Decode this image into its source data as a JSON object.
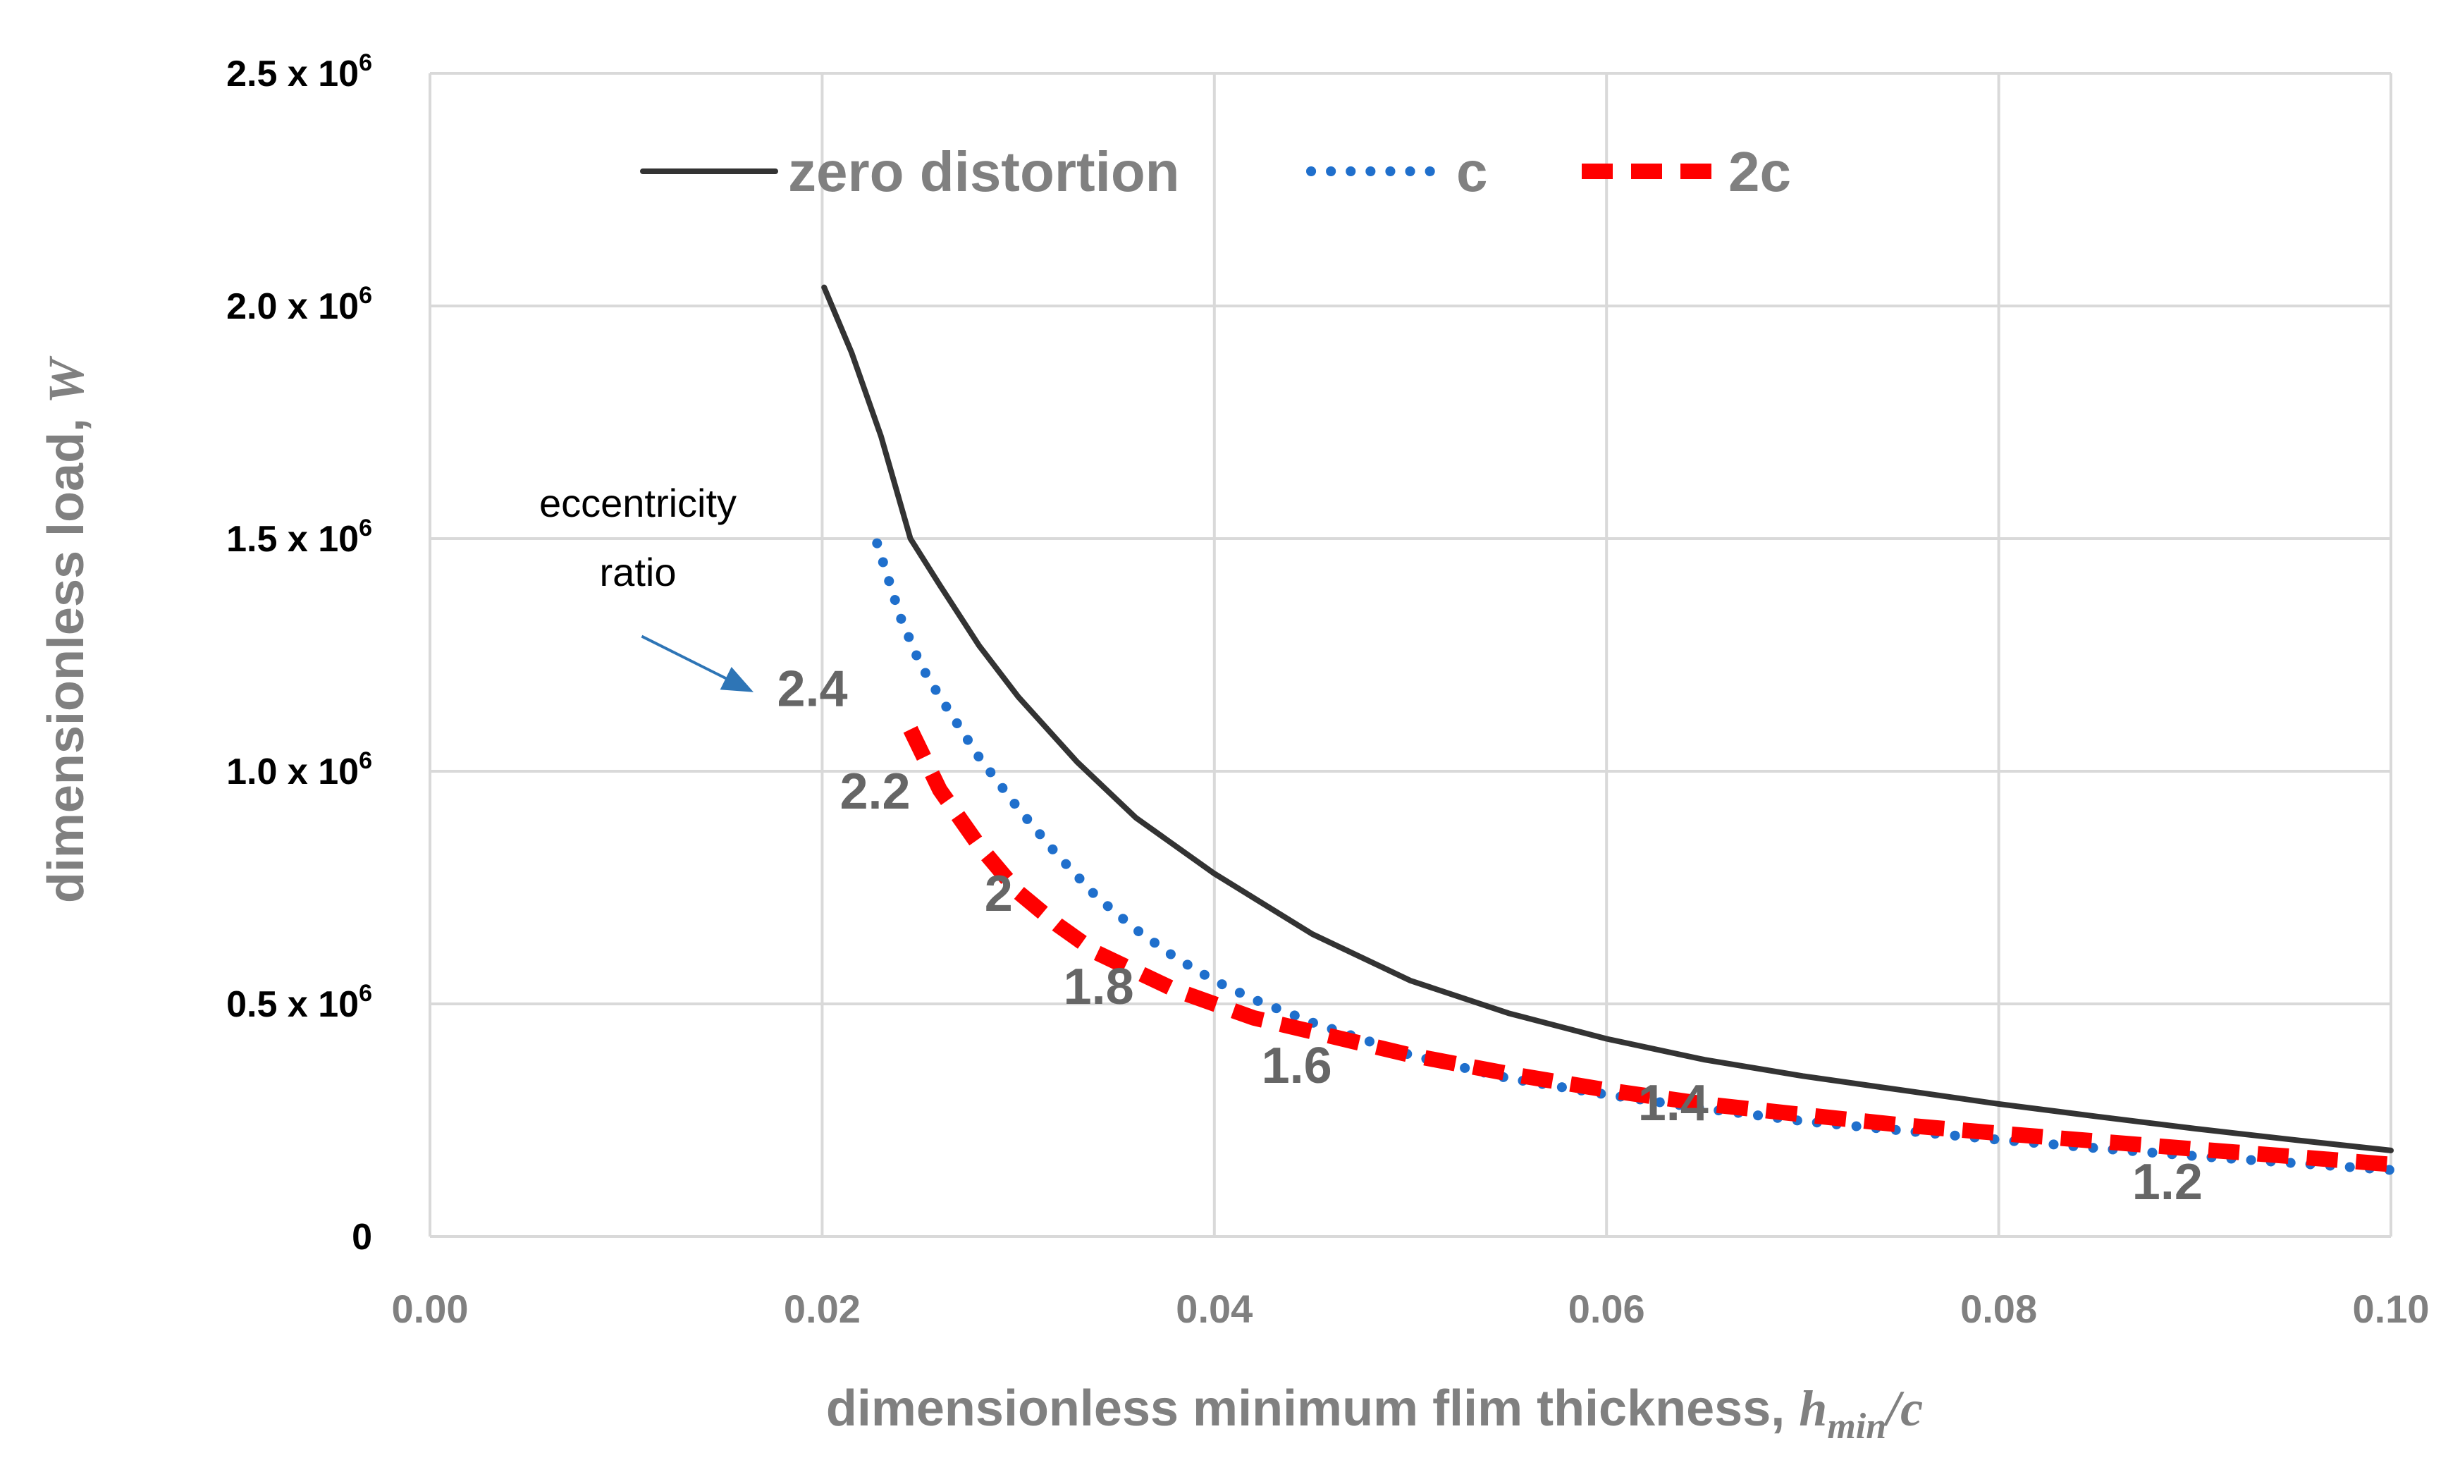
{
  "chart_data": {
    "type": "line",
    "xlabel": "dimensionless minimum flim thickness,",
    "xlabel_var": "h",
    "xlabel_var_sub": "min",
    "xlabel_var_tail": "/c",
    "ylabel": "dimensionless load,",
    "ylabel_var": "W",
    "xlim": [
      0,
      0.1
    ],
    "ylim": [
      0,
      2500000
    ],
    "grid": true,
    "legend_position": "top",
    "x_ticks": [
      {
        "value": 0.0,
        "label": "0.00"
      },
      {
        "value": 0.02,
        "label": "0.02"
      },
      {
        "value": 0.04,
        "label": "0.04"
      },
      {
        "value": 0.06,
        "label": "0.06"
      },
      {
        "value": 0.08,
        "label": "0.08"
      },
      {
        "value": 0.1,
        "label": "0.10"
      }
    ],
    "y_ticks": [
      {
        "value": 0,
        "label": "0",
        "sup": ""
      },
      {
        "value": 500000,
        "label": "0.5 x 10",
        "sup": "6"
      },
      {
        "value": 1000000,
        "label": "1.0 x 10",
        "sup": "6"
      },
      {
        "value": 1500000,
        "label": "1.5 x 10",
        "sup": "6"
      },
      {
        "value": 2000000,
        "label": "2.0 x 10",
        "sup": "6"
      },
      {
        "value": 2500000,
        "label": "2.5 x 10",
        "sup": "6"
      }
    ],
    "series": [
      {
        "name": "zero distortion",
        "style": "solid",
        "color": "#333333",
        "x": [
          0.0201,
          0.0215,
          0.023,
          0.0245,
          0.026,
          0.028,
          0.03,
          0.033,
          0.036,
          0.04,
          0.045,
          0.05,
          0.055,
          0.06,
          0.065,
          0.07,
          0.075,
          0.08,
          0.085,
          0.09,
          0.095,
          0.1
        ],
        "y": [
          2040000,
          1900000,
          1720000,
          1500000,
          1400000,
          1270000,
          1160000,
          1020000,
          900000,
          780000,
          650000,
          550000,
          480000,
          425000,
          380000,
          345000,
          315000,
          285000,
          258000,
          232000,
          208000,
          185000
        ]
      },
      {
        "name": "c",
        "style": "dotted",
        "color": "#1f6fcc",
        "x": [
          0.0228,
          0.024,
          0.025,
          0.026,
          0.028,
          0.03,
          0.032,
          0.034,
          0.036,
          0.038,
          0.04,
          0.042,
          0.045,
          0.05,
          0.055,
          0.06,
          0.065,
          0.07,
          0.075,
          0.08,
          0.085,
          0.09,
          0.095,
          0.1
        ],
        "y": [
          1490000,
          1330000,
          1230000,
          1160000,
          1030000,
          920000,
          820000,
          730000,
          660000,
          600000,
          550000,
          510000,
          460000,
          390000,
          340000,
          305000,
          275000,
          248000,
          228000,
          208000,
          190000,
          173000,
          158000,
          143000
        ]
      },
      {
        "name": "2c",
        "style": "dashed",
        "color": "#ff0000",
        "x": [
          0.0245,
          0.026,
          0.028,
          0.03,
          0.032,
          0.034,
          0.036,
          0.038,
          0.04,
          0.042,
          0.045,
          0.05,
          0.055,
          0.06,
          0.065,
          0.07,
          0.075,
          0.08,
          0.085,
          0.09,
          0.095,
          0.1
        ],
        "y": [
          1090000,
          960000,
          840000,
          740000,
          670000,
          610000,
          570000,
          530000,
          500000,
          470000,
          440000,
          390000,
          350000,
          315000,
          285000,
          262000,
          240000,
          222000,
          205000,
          188000,
          172000,
          155000
        ]
      }
    ],
    "annotations": {
      "eccentricity_label_line1": "eccentricity",
      "eccentricity_label_line2": "ratio",
      "arrow_from": {
        "x": 0.0108,
        "y": 1290000
      },
      "arrow_to": {
        "x": 0.0165,
        "y": 1170000
      },
      "ratios": [
        {
          "label": "2.4",
          "x": 0.0195,
          "y": 1140000
        },
        {
          "label": "2.2",
          "x": 0.0227,
          "y": 920000
        },
        {
          "label": "2",
          "x": 0.029,
          "y": 700000
        },
        {
          "label": "1.8",
          "x": 0.0341,
          "y": 500000
        },
        {
          "label": "1.6",
          "x": 0.0442,
          "y": 330000
        },
        {
          "label": "1.4",
          "x": 0.0634,
          "y": 250000
        },
        {
          "label": "1.2",
          "x": 0.0886,
          "y": 80000
        }
      ]
    }
  }
}
